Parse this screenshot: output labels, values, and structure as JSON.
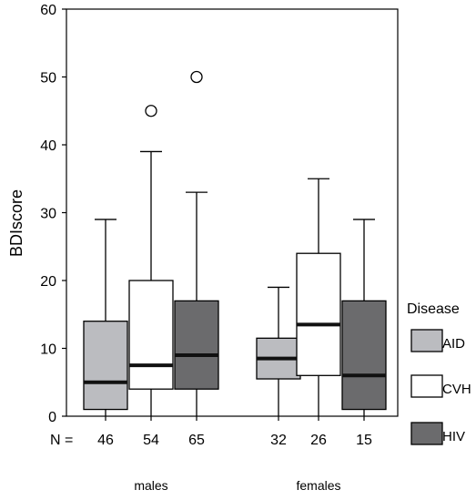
{
  "chart_data": {
    "type": "boxplot",
    "ylabel": "BDIscore",
    "ylim": [
      0,
      60
    ],
    "yticks": [
      0,
      10,
      20,
      30,
      40,
      50,
      60
    ],
    "grid": false,
    "n_label": "N =",
    "groups": [
      "males",
      "females"
    ],
    "series": [
      {
        "name": "AID",
        "color": "#bbbcc0"
      },
      {
        "name": "CVH",
        "color": "#ffffff"
      },
      {
        "name": "HIV",
        "color": "#6b6b6d"
      }
    ],
    "legend": {
      "title": "Disease",
      "position": "right"
    },
    "boxes": [
      {
        "group": "males",
        "series": "AID",
        "n": "46",
        "whisker_low": 0,
        "q1": 1,
        "median": 5,
        "q3": 14,
        "whisker_high": 29,
        "outliers": []
      },
      {
        "group": "males",
        "series": "CVH",
        "n": "54",
        "whisker_low": 0,
        "q1": 4,
        "median": 7.5,
        "q3": 20,
        "whisker_high": 39,
        "outliers": [
          45
        ]
      },
      {
        "group": "males",
        "series": "HIV",
        "n": "65",
        "whisker_low": 0,
        "q1": 4,
        "median": 9,
        "q3": 17,
        "whisker_high": 33,
        "outliers": [
          50
        ]
      },
      {
        "group": "females",
        "series": "AID",
        "n": "32",
        "whisker_low": 0,
        "q1": 5.5,
        "median": 8.5,
        "q3": 11.5,
        "whisker_high": 19,
        "outliers": []
      },
      {
        "group": "females",
        "series": "CVH",
        "n": "26",
        "whisker_low": 0,
        "q1": 6,
        "median": 13.5,
        "q3": 24,
        "whisker_high": 35,
        "outliers": []
      },
      {
        "group": "females",
        "series": "HIV",
        "n": "15",
        "whisker_low": 0,
        "q1": 1,
        "median": 6,
        "q3": 17,
        "whisker_high": 29,
        "outliers": []
      }
    ]
  }
}
